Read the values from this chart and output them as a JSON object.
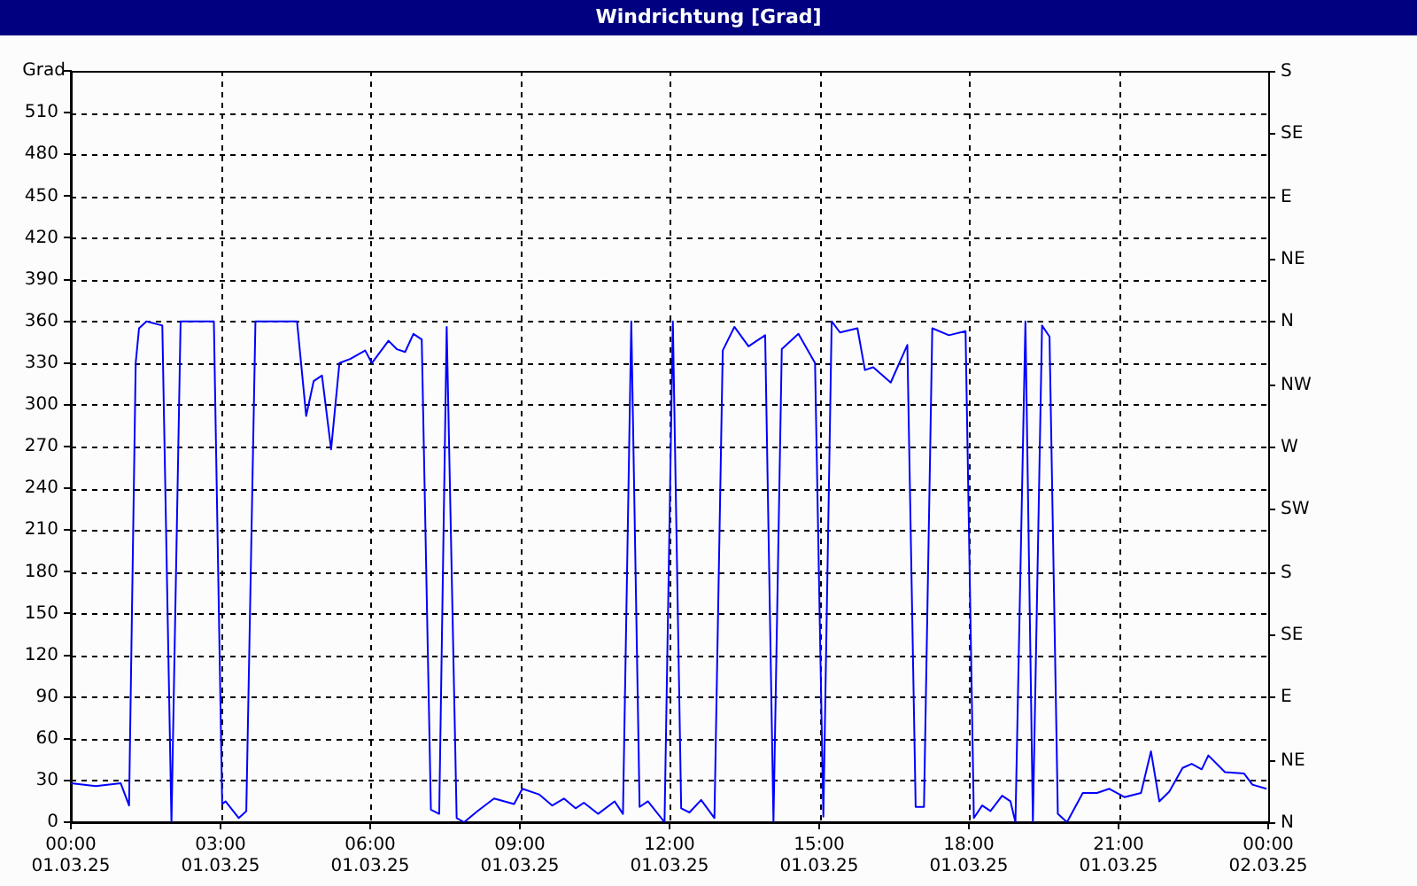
{
  "chart_data": {
    "type": "line",
    "title": "Windrichtung [Grad]",
    "ylabel": "Grad",
    "x": [
      "--03-01T00:00",
      "--03-01T00:30",
      "--03-01T01:00",
      "--03-01T01:10",
      "--03-01T01:18",
      "--03-01T01:22",
      "--03-01T01:31",
      "--03-01T01:50",
      "--03-01T02:01",
      "--03-01T02:12",
      "--03-01T02:52",
      "--03-01T03:02",
      "--03-01T03:06",
      "--03-01T03:22",
      "--03-01T03:31",
      "--03-01T03:42",
      "--03-01T04:32",
      "--03-01T04:43",
      "--03-01T04:52",
      "--03-01T05:02",
      "--03-01T05:13",
      "--03-01T05:23",
      "--03-01T05:36",
      "--03-01T05:54",
      "--03-01T06:02",
      "--03-01T06:22",
      "--03-01T06:32",
      "--03-01T06:42",
      "--03-01T06:52",
      "--03-01T07:02",
      "--03-01T07:13",
      "--03-01T07:23",
      "--03-01T07:32",
      "--03-01T07:44",
      "--03-01T07:53",
      "--03-01T08:09",
      "--03-01T08:29",
      "--03-01T08:53",
      "--03-01T09:03",
      "--03-01T09:23",
      "--03-01T09:39",
      "--03-01T09:53",
      "--03-01T10:07",
      "--03-01T10:17",
      "--03-01T10:34",
      "--03-01T10:54",
      "--03-01T11:04",
      "--03-01T11:14",
      "--03-01T11:24",
      "--03-01T11:34",
      "--03-01T11:54",
      "--03-01T12:04",
      "--03-01T12:14",
      "--03-01T12:24",
      "--03-01T12:38",
      "--03-01T12:54",
      "--03-01T13:04",
      "--03-01T13:18",
      "--03-01T13:35",
      "--03-01T13:55",
      "--03-01T14:05",
      "--03-01T14:15",
      "--03-01T14:35",
      "--03-01T14:55",
      "--03-01T15:05",
      "--03-01T15:15",
      "--03-01T15:25",
      "--03-01T15:46",
      "--03-01T15:55",
      "--03-01T16:05",
      "--03-01T16:26",
      "--03-01T16:46",
      "--03-01T16:56",
      "--03-01T17:06",
      "--03-01T17:16",
      "--03-01T17:36",
      "--03-01T17:56",
      "--03-01T18:06",
      "--03-01T18:16",
      "--03-01T18:26",
      "--03-01T18:40",
      "--03-01T18:50",
      "--03-01T18:56",
      "--03-01T19:08",
      "--03-01T19:17",
      "--03-01T19:28",
      "--03-01T19:37",
      "--03-01T19:47",
      "--03-01T19:58",
      "--03-01T20:17",
      "--03-01T20:34",
      "--03-01T20:49",
      "--03-01T21:07",
      "--03-01T21:27",
      "--03-01T21:39",
      "--03-01T21:49",
      "--03-01T22:01",
      "--03-01T22:17",
      "--03-01T22:28",
      "--03-01T22:40",
      "--03-01T22:48",
      "--03-01T23:08",
      "--03-01T23:31",
      "--03-01T23:41",
      "--03-01T23:58"
    ],
    "series": [
      {
        "color": "#0000ff",
        "values": [
          28,
          26,
          28,
          12,
          330,
          355,
          360,
          357,
          0,
          360,
          360,
          13,
          15,
          3,
          8,
          360,
          360,
          292,
          317,
          321,
          268,
          330,
          333,
          339,
          330,
          346,
          340,
          338,
          351,
          347,
          9,
          6,
          356,
          3,
          0,
          8,
          17,
          13,
          24,
          20,
          12,
          17,
          10,
          14,
          6,
          15,
          6,
          360,
          11,
          15,
          0,
          360,
          10,
          7,
          16,
          3,
          339,
          356,
          342,
          350,
          0,
          340,
          351,
          330,
          4,
          360,
          352,
          355,
          325,
          327,
          316,
          343,
          11,
          11,
          355,
          350,
          353,
          3,
          12,
          8,
          19,
          15,
          0,
          360,
          0,
          357,
          349,
          6,
          0,
          21,
          21,
          24,
          18,
          21,
          51,
          15,
          22,
          39,
          42,
          38,
          48,
          36,
          35,
          27,
          24
        ]
      }
    ],
    "xlim": [
      "--03-01T00:00",
      "--03-02T00:00"
    ],
    "xticks": [
      {
        "value": "--03-01T00:00",
        "label": "00:00\n01.03.25"
      },
      {
        "value": "--03-01T03:00",
        "label": "03:00\n01.03.25"
      },
      {
        "value": "--03-01T06:00",
        "label": "06:00\n01.03.25"
      },
      {
        "value": "--03-01T09:00",
        "label": "09:00\n01.03.25"
      },
      {
        "value": "--03-01T12:00",
        "label": "12:00\n01.03.25"
      },
      {
        "value": "--03-01T15:00",
        "label": "15:00\n01.03.25"
      },
      {
        "value": "--03-01T18:00",
        "label": "18:00\n01.03.25"
      },
      {
        "value": "--03-01T21:00",
        "label": "21:00\n01.03.25"
      },
      {
        "value": "--03-02T00:00",
        "label": "00:00\n02.03.25"
      }
    ],
    "ylim": [
      0,
      540
    ],
    "yticks": [
      0,
      30,
      60,
      90,
      120,
      150,
      180,
      210,
      240,
      270,
      300,
      330,
      360,
      390,
      420,
      450,
      480,
      510,
      {
        "value": 540,
        "label": null
      }
    ],
    "annotations": [
      "N",
      "NE",
      "E",
      "SE",
      "S",
      "SW",
      "W",
      "NW",
      "N",
      "NE",
      "E",
      "SE",
      "S"
    ],
    "grid": true,
    "legend": false,
    "marker": "none",
    "line_style": "solid"
  }
}
